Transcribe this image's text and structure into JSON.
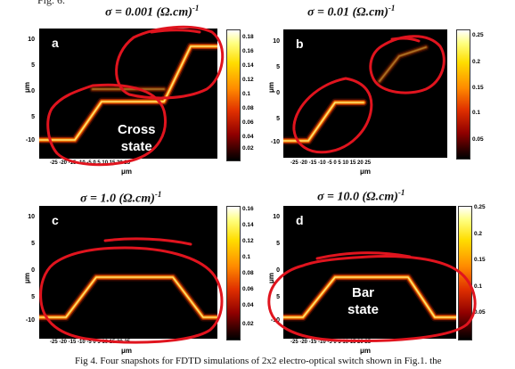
{
  "figure_top_text": "Fig. 6.",
  "caption": "Fig 4. Four snapshots for FDTD simulations of 2x2 electro-optical switch shown in Fig.1. the",
  "panels": [
    {
      "id": "a",
      "title_prefix": "σ = 0.001 (Ω.cm)",
      "title_sup": "-1",
      "label": "a",
      "annotation": [
        "Cross",
        "state"
      ],
      "ylabel": "μm",
      "xlabel": "μm",
      "yticks": [
        "10",
        "5",
        "0",
        "5",
        "-10"
      ],
      "xticks": "-25 -20 -15 -10 -5  0   5  10  15  20  25",
      "colorbar_ticks": [
        "0.18",
        "0.16",
        "0.14",
        "0.12",
        "0.1",
        "0.08",
        "0.06",
        "0.04",
        "0.02"
      ],
      "state": "cross"
    },
    {
      "id": "b",
      "title_prefix": "σ = 0.01 (Ω.cm)",
      "title_sup": "-1",
      "label": "b",
      "annotation": [],
      "ylabel": "μm",
      "xlabel": "μm",
      "yticks": [
        "10",
        "5",
        "0",
        "5",
        "-10"
      ],
      "xticks": "-25 -20 -15 -10 -5  0   5  10  15  20  25",
      "colorbar_ticks": [
        "0.25",
        "0.2",
        "0.15",
        "0.1",
        "0.05"
      ],
      "state": "weak-cross"
    },
    {
      "id": "c",
      "title_prefix": "σ = 1.0 (Ω.cm)",
      "title_sup": "-1",
      "label": "c",
      "annotation": [],
      "ylabel": "μm",
      "xlabel": "μm",
      "yticks": [
        "10",
        "5",
        "0",
        "5",
        "-10"
      ],
      "xticks": "-25 -20 -15 -10 -5  0   5  10  15  20  25",
      "colorbar_ticks": [
        "0.16",
        "0.14",
        "0.12",
        "0.1",
        "0.08",
        "0.06",
        "0.04",
        "0.02"
      ],
      "state": "bar"
    },
    {
      "id": "d",
      "title_prefix": "σ = 10.0 (Ω.cm)",
      "title_sup": "-1",
      "label": "d",
      "annotation": [
        "Bar",
        "state"
      ],
      "ylabel": "μm",
      "xlabel": "μm",
      "yticks": [
        "10",
        "5",
        "0",
        "5",
        "-10"
      ],
      "xticks": "-25 -20 -15 -10 -5  0   5  10  15  20  25",
      "colorbar_ticks": [
        "0.25",
        "0.2",
        "0.15",
        "0.1",
        "0.05"
      ],
      "state": "bar"
    }
  ],
  "colors": {
    "background": "#000000",
    "annotation_ring": "#e0141e",
    "waveguide_core": "#ffd84a",
    "waveguide_glow": "#ff6a00"
  }
}
